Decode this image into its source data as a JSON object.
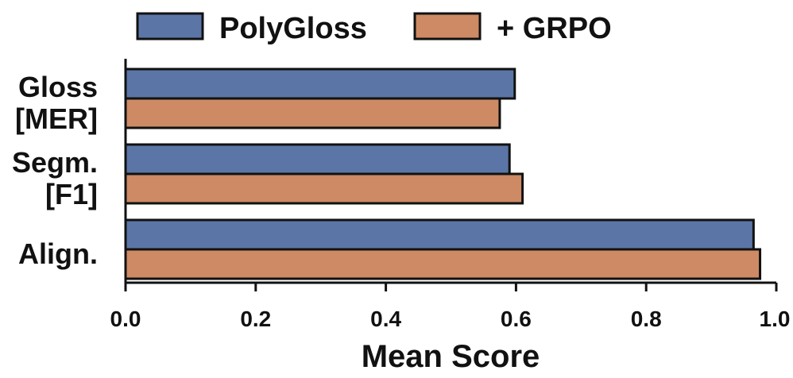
{
  "chart_data": {
    "type": "bar",
    "orientation": "horizontal",
    "categories": [
      [
        "Gloss",
        "[MER]"
      ],
      [
        "Segm.",
        "[F1]"
      ],
      [
        "Align."
      ]
    ],
    "series": [
      {
        "name": "PolyGloss",
        "color": "#5b76a6",
        "values": [
          0.598,
          0.59,
          0.965
        ]
      },
      {
        "name": "+ GRPO",
        "color": "#cd8a64",
        "values": [
          0.575,
          0.61,
          0.975
        ]
      }
    ],
    "xlabel": "Mean Score",
    "ylabel": "",
    "xlim": [
      0.0,
      1.0
    ],
    "xticks": [
      "0.0",
      "0.2",
      "0.4",
      "0.6",
      "0.8",
      "1.0"
    ],
    "grid": false,
    "legend_position": "top"
  }
}
